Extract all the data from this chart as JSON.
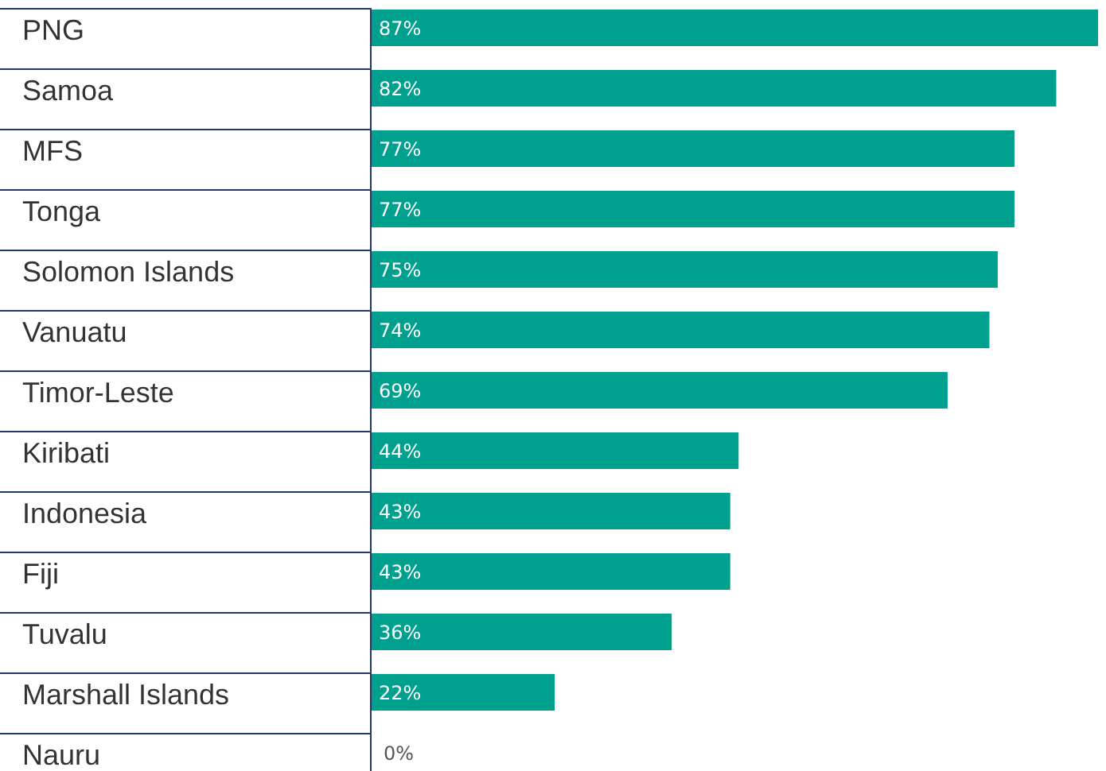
{
  "chart_data": {
    "type": "bar",
    "orientation": "horizontal",
    "categories": [
      "PNG",
      "Samoa",
      "MFS",
      "Tonga",
      "Solomon Islands",
      "Vanuatu",
      "Timor-Leste",
      "Kiribati",
      "Indonesia",
      "Fiji",
      "Tuvalu",
      "Marshall Islands",
      "Nauru"
    ],
    "values": [
      87,
      82,
      77,
      77,
      75,
      74,
      69,
      44,
      43,
      43,
      36,
      22,
      0
    ],
    "value_labels": [
      "87%",
      "82%",
      "77%",
      "77%",
      "75%",
      "74%",
      "69%",
      "44%",
      "43%",
      "43%",
      "36%",
      "22%",
      "0%"
    ],
    "color": "#00a08f"
  }
}
